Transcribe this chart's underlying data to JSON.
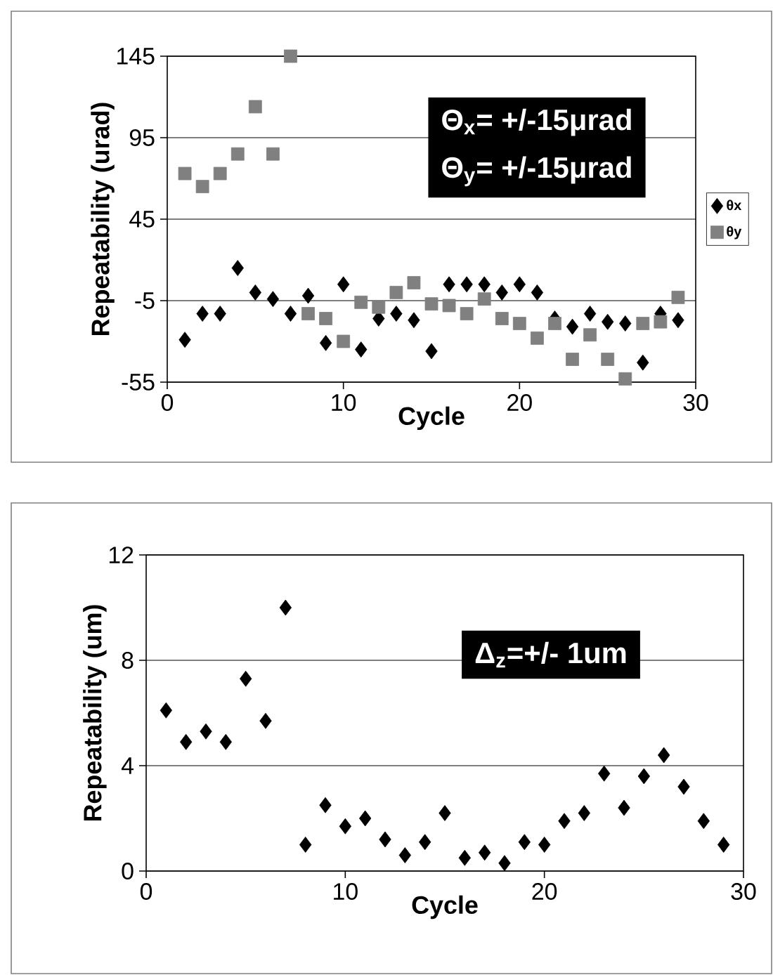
{
  "chart_data": [
    {
      "type": "scatter",
      "xlabel": "Cycle",
      "ylabel": "Repeatability (urad)",
      "annotations": [
        "Θ$_{x}$= +/-15μrad",
        "Θ$_{y}$= +/-15μrad"
      ],
      "x": [
        1,
        2,
        3,
        4,
        5,
        6,
        7,
        8,
        9,
        10,
        11,
        12,
        13,
        14,
        15,
        16,
        17,
        18,
        19,
        20,
        21,
        22,
        23,
        24,
        25,
        26,
        27,
        28,
        29
      ],
      "series": [
        {
          "name": "θx",
          "color": "#000000",
          "marker": "diamond",
          "values": [
            -29,
            -13,
            -13,
            15,
            0,
            -4,
            -13,
            -2,
            -31,
            5,
            -35,
            -16,
            -13,
            -17,
            -36,
            5,
            5,
            5,
            0,
            5,
            0,
            -16,
            -21,
            -13,
            -18,
            -19,
            -43,
            -13,
            -17
          ]
        },
        {
          "name": "θy",
          "color": "#808080",
          "marker": "square",
          "values": [
            73,
            65,
            73,
            85,
            114,
            85,
            145,
            -13,
            -16,
            -30,
            -6,
            -9,
            0,
            6,
            -7,
            -8,
            -13,
            -4,
            -16,
            -19,
            -28,
            -19,
            -41,
            -26,
            -41,
            -53,
            -19,
            -18,
            -3
          ]
        }
      ],
      "xlim": [
        0,
        30
      ],
      "xticks": [
        0,
        10,
        20,
        30
      ],
      "ylim": [
        -55,
        145
      ],
      "yticks": [
        -55,
        -5,
        45,
        95,
        145
      ],
      "grid": "y",
      "legend": "right"
    },
    {
      "type": "scatter",
      "xlabel": "Cycle",
      "ylabel": "Repeatability (um)",
      "annotations": [
        "Δ$_{z}$=+/- 1um"
      ],
      "x": [
        1,
        2,
        3,
        4,
        5,
        6,
        7,
        8,
        9,
        10,
        11,
        12,
        13,
        14,
        15,
        16,
        17,
        18,
        19,
        20,
        21,
        22,
        23,
        24,
        25,
        26,
        27,
        28,
        29
      ],
      "series": [
        {
          "color": "#000000",
          "marker": "diamond",
          "values": [
            6.1,
            4.9,
            5.3,
            4.9,
            7.3,
            5.7,
            10.0,
            1.0,
            2.5,
            1.7,
            2.0,
            1.2,
            0.6,
            1.1,
            2.2,
            0.5,
            0.7,
            0.3,
            1.1,
            1.0,
            1.9,
            2.2,
            3.7,
            2.4,
            3.6,
            4.4,
            3.2,
            1.9,
            1.0
          ]
        }
      ],
      "xlim": [
        0,
        30
      ],
      "xticks": [
        0,
        10,
        20,
        30
      ],
      "ylim": [
        0,
        12
      ],
      "yticks": [
        0,
        4,
        8,
        12
      ],
      "grid": "y"
    }
  ]
}
